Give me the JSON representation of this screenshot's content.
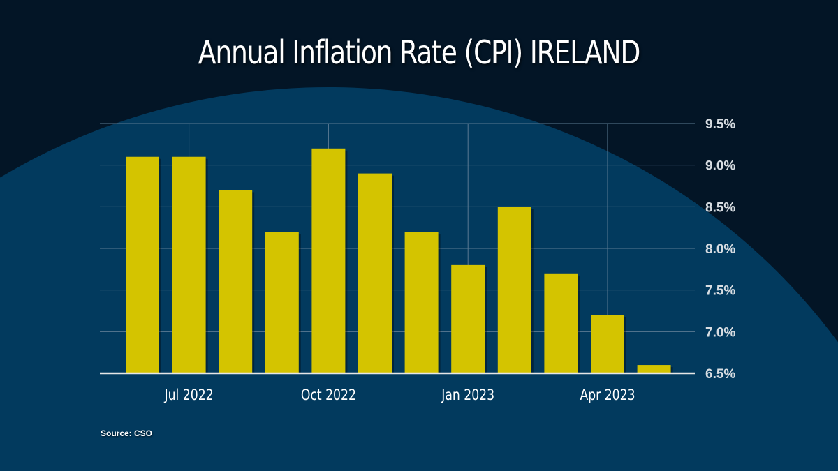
{
  "chart_data": {
    "type": "bar",
    "title": "Annual Inflation Rate (CPI) IRELAND",
    "categories": [
      "Jun 2022",
      "Jul 2022",
      "Aug 2022",
      "Sep 2022",
      "Oct 2022",
      "Nov 2022",
      "Dec 2022",
      "Jan 2023",
      "Feb 2023",
      "Mar 2023",
      "Apr 2023",
      "May 2023"
    ],
    "values": [
      9.1,
      9.1,
      8.7,
      8.2,
      9.2,
      8.9,
      8.2,
      7.8,
      8.5,
      7.7,
      7.2,
      6.6
    ],
    "x_tick_labels": [
      {
        "category": "Jul 2022",
        "label": "Jul 2022"
      },
      {
        "category": "Oct 2022",
        "label": "Oct 2022"
      },
      {
        "category": "Jan 2023",
        "label": "Jan 2023"
      },
      {
        "category": "Apr 2023",
        "label": "Apr 2023"
      }
    ],
    "y_ticks": [
      "6.5%",
      "7.0%",
      "7.5%",
      "8.0%",
      "8.5%",
      "9.0%",
      "9.5%"
    ],
    "y_tick_values": [
      6.5,
      7.0,
      7.5,
      8.0,
      8.5,
      9.0,
      9.5
    ],
    "ylim": [
      6.5,
      9.5
    ],
    "y_axis_side": "right",
    "grid": true,
    "xlabel": "",
    "ylabel": "",
    "bar_color": "#d4c400",
    "background_color": "#031526",
    "panel_color": "#023a5e"
  },
  "source": "Source: CSO"
}
